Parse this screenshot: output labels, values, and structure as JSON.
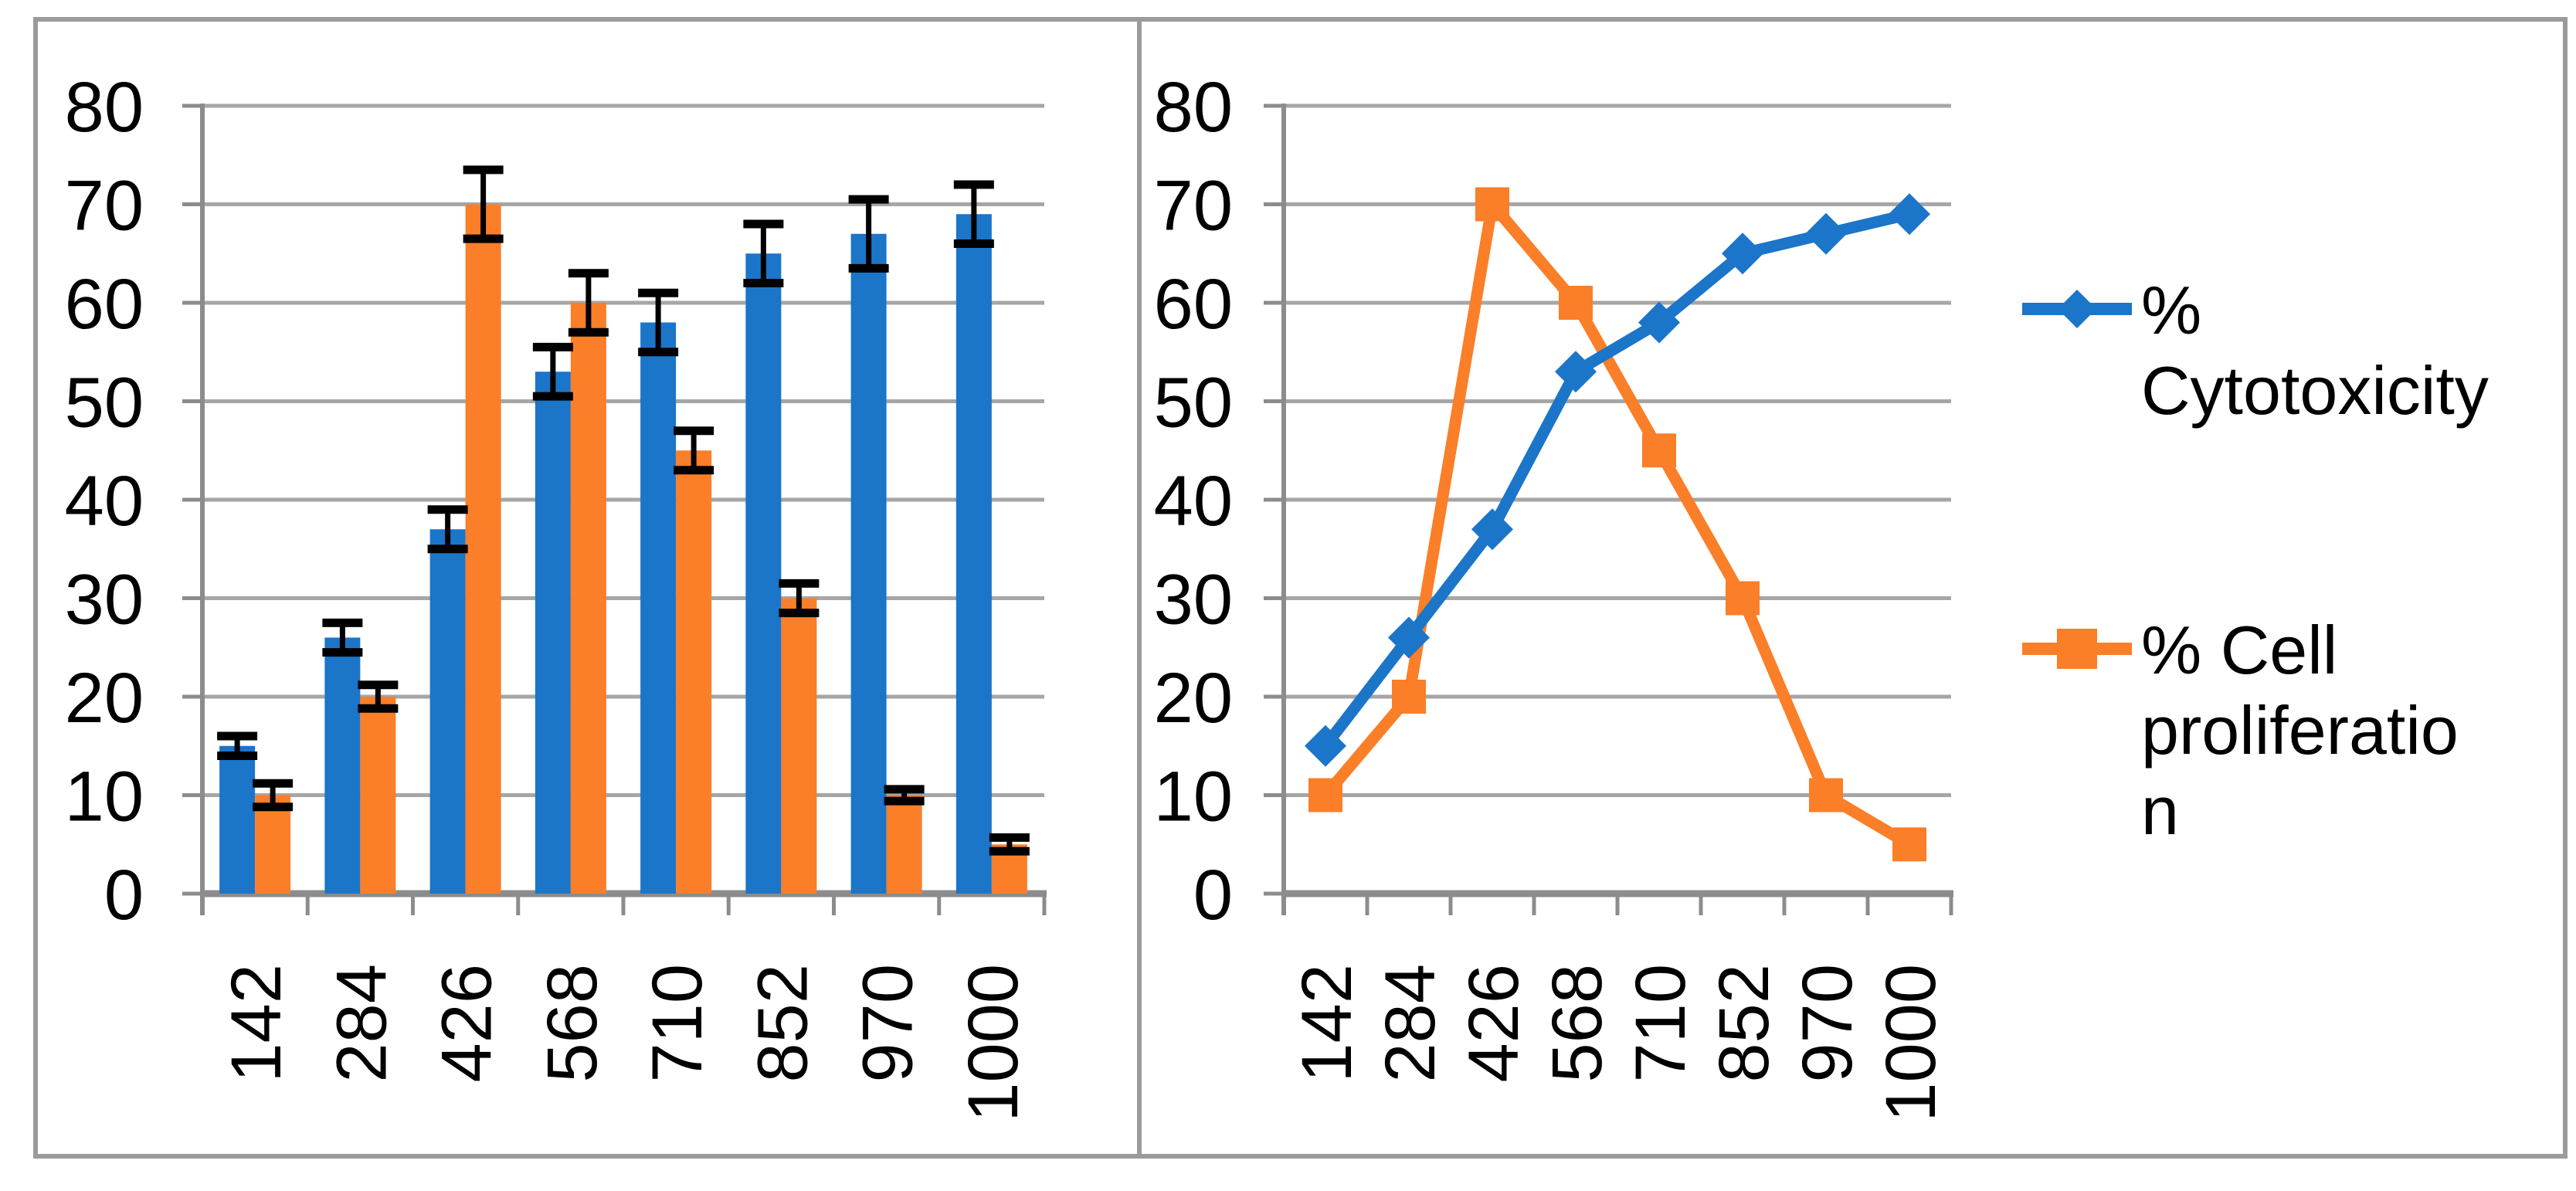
{
  "colors": {
    "series1_blue": "#1B75C9",
    "series2_orange": "#FB7E28",
    "gridline": "#A6A6A6",
    "axis": "#8C8C8C",
    "panel_border": "#9B9B9B",
    "text": "#000000",
    "error_bar": "#000000",
    "background": "#FFFFFF"
  },
  "axes": {
    "ylim": [
      0,
      80
    ],
    "ytick_step": 10,
    "yticks": [
      "0",
      "10",
      "20",
      "30",
      "40",
      "50",
      "60",
      "70",
      "80"
    ],
    "categories": [
      "142",
      "284",
      "426",
      "568",
      "710",
      "852",
      "970",
      "1000"
    ]
  },
  "chart_data": [
    {
      "type": "bar",
      "panel": "left",
      "title": "",
      "xlabel": "",
      "ylabel": "",
      "grid": true,
      "error_bars": true,
      "ylim": [
        0,
        80
      ],
      "ytick_step": 10,
      "yticks": [
        "0",
        "10",
        "20",
        "30",
        "40",
        "50",
        "60",
        "70",
        "80"
      ],
      "categories": [
        "142",
        "284",
        "426",
        "568",
        "710",
        "852",
        "970",
        "1000"
      ],
      "series": [
        {
          "name": "% Cytotoxicity",
          "color": "#1B75C9",
          "values": [
            15,
            26,
            37,
            53,
            58,
            65,
            67,
            69
          ],
          "errors": [
            1,
            1.5,
            2,
            2.5,
            3,
            3,
            3.5,
            3
          ]
        },
        {
          "name": "% Cell proliferation",
          "color": "#FB7E28",
          "values": [
            10,
            20,
            70,
            60,
            45,
            30,
            10,
            5
          ],
          "errors": [
            1.2,
            1.2,
            3.5,
            3,
            2,
            1.5,
            0.6,
            0.7
          ]
        }
      ]
    },
    {
      "type": "line",
      "panel": "right",
      "title": "",
      "xlabel": "",
      "ylabel": "",
      "grid": true,
      "ylim": [
        0,
        80
      ],
      "ytick_step": 10,
      "yticks": [
        "0",
        "10",
        "20",
        "30",
        "40",
        "50",
        "60",
        "70",
        "80"
      ],
      "categories": [
        "142",
        "284",
        "426",
        "568",
        "710",
        "852",
        "970",
        "1000"
      ],
      "series": [
        {
          "name": "% Cytotoxicity",
          "color": "#1B75C9",
          "marker": "diamond",
          "values": [
            15,
            26,
            37,
            53,
            58,
            65,
            67,
            69
          ]
        },
        {
          "name": "% Cell proliferation",
          "color": "#FB7E28",
          "marker": "square",
          "values": [
            10,
            20,
            70,
            60,
            45,
            30,
            10,
            5
          ]
        }
      ],
      "legend": {
        "position": "right",
        "items": [
          {
            "label": "% Cytotoxicity",
            "lines": [
              "%",
              "Cytotoxicity"
            ],
            "marker": "diamond",
            "color": "#1B75C9"
          },
          {
            "label": "% Cell proliferation",
            "lines": [
              "% Cell",
              "proliferatio",
              "n"
            ],
            "marker": "square",
            "color": "#FB7E28"
          }
        ]
      }
    }
  ]
}
